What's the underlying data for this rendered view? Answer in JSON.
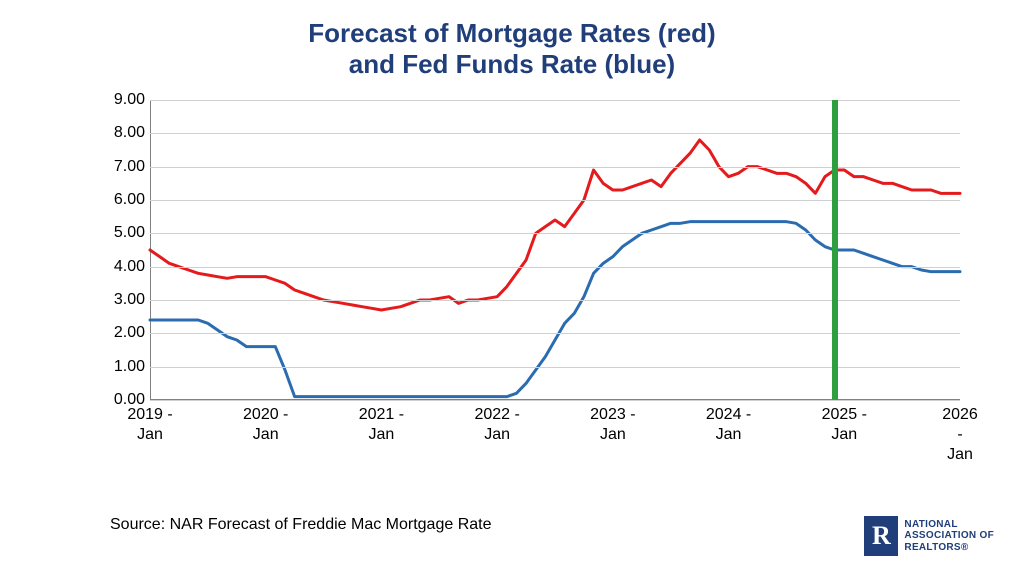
{
  "title_line1": "Forecast of Mortgage Rates (red)",
  "title_line2": "and Fed Funds Rate (blue)",
  "title_color": "#1f3e7a",
  "title_fontsize": 26,
  "source": "Source: NAR Forecast of Freddie Mac Mortgage Rate",
  "source_fontsize": 16,
  "source_color": "#000000",
  "chart": {
    "type": "line",
    "background_color": "#ffffff",
    "grid_color": "#d0d0d0",
    "axis_color": "#808080",
    "tick_font_color": "#000000",
    "tick_fontsize": 16,
    "ylim": [
      0,
      9
    ],
    "ytick_step": 1,
    "ytick_format": "0.00",
    "x_start_year": 2019,
    "x_start_month": 1,
    "n_months": 85,
    "x_ticks": [
      {
        "index": 0,
        "label": "2019 -\nJan"
      },
      {
        "index": 12,
        "label": "2020 -\nJan"
      },
      {
        "index": 24,
        "label": "2021 -\nJan"
      },
      {
        "index": 36,
        "label": "2022 -\nJan"
      },
      {
        "index": 48,
        "label": "2023 -\nJan"
      },
      {
        "index": 60,
        "label": "2024 -\nJan"
      },
      {
        "index": 72,
        "label": "2025 -\nJan"
      },
      {
        "index": 84,
        "label": "2026 -\nJan"
      }
    ],
    "marker_line": {
      "index": 71,
      "color": "#2e9e3f",
      "width": 6
    },
    "series": [
      {
        "name": "Mortgage Rate",
        "color": "#e41a1c",
        "line_width": 3,
        "values": [
          4.5,
          4.3,
          4.1,
          4.0,
          3.9,
          3.8,
          3.75,
          3.7,
          3.65,
          3.7,
          3.7,
          3.7,
          3.7,
          3.6,
          3.5,
          3.3,
          3.2,
          3.1,
          3.0,
          2.95,
          2.9,
          2.85,
          2.8,
          2.75,
          2.7,
          2.75,
          2.8,
          2.9,
          3.0,
          3.0,
          3.05,
          3.1,
          2.9,
          3.0,
          3.0,
          3.05,
          3.1,
          3.4,
          3.8,
          4.2,
          5.0,
          5.2,
          5.4,
          5.2,
          5.6,
          6.0,
          6.9,
          6.5,
          6.3,
          6.3,
          6.4,
          6.5,
          6.6,
          6.4,
          6.8,
          7.1,
          7.4,
          7.8,
          7.5,
          7.0,
          6.7,
          6.8,
          7.0,
          7.0,
          6.9,
          6.8,
          6.8,
          6.7,
          6.5,
          6.2,
          6.7,
          6.9,
          6.9,
          6.7,
          6.7,
          6.6,
          6.5,
          6.5,
          6.4,
          6.3,
          6.3,
          6.3,
          6.2,
          6.2,
          6.2
        ]
      },
      {
        "name": "Fed Funds Rate",
        "color": "#2b6cb0",
        "line_width": 3,
        "values": [
          2.4,
          2.4,
          2.4,
          2.4,
          2.4,
          2.4,
          2.3,
          2.1,
          1.9,
          1.8,
          1.6,
          1.6,
          1.6,
          1.6,
          0.9,
          0.1,
          0.1,
          0.1,
          0.1,
          0.1,
          0.1,
          0.1,
          0.1,
          0.1,
          0.1,
          0.1,
          0.1,
          0.1,
          0.1,
          0.1,
          0.1,
          0.1,
          0.1,
          0.1,
          0.1,
          0.1,
          0.1,
          0.1,
          0.2,
          0.5,
          0.9,
          1.3,
          1.8,
          2.3,
          2.6,
          3.1,
          3.8,
          4.1,
          4.3,
          4.6,
          4.8,
          5.0,
          5.1,
          5.2,
          5.3,
          5.3,
          5.35,
          5.35,
          5.35,
          5.35,
          5.35,
          5.35,
          5.35,
          5.35,
          5.35,
          5.35,
          5.35,
          5.3,
          5.1,
          4.8,
          4.6,
          4.5,
          4.5,
          4.5,
          4.4,
          4.3,
          4.2,
          4.1,
          4.0,
          4.0,
          3.9,
          3.85,
          3.85,
          3.85,
          3.85
        ]
      }
    ]
  },
  "logo": {
    "letter": "R",
    "text_line1": "NATIONAL",
    "text_line2": "ASSOCIATION OF",
    "text_line3": "REALTORS®",
    "color": "#1f3e7a"
  }
}
